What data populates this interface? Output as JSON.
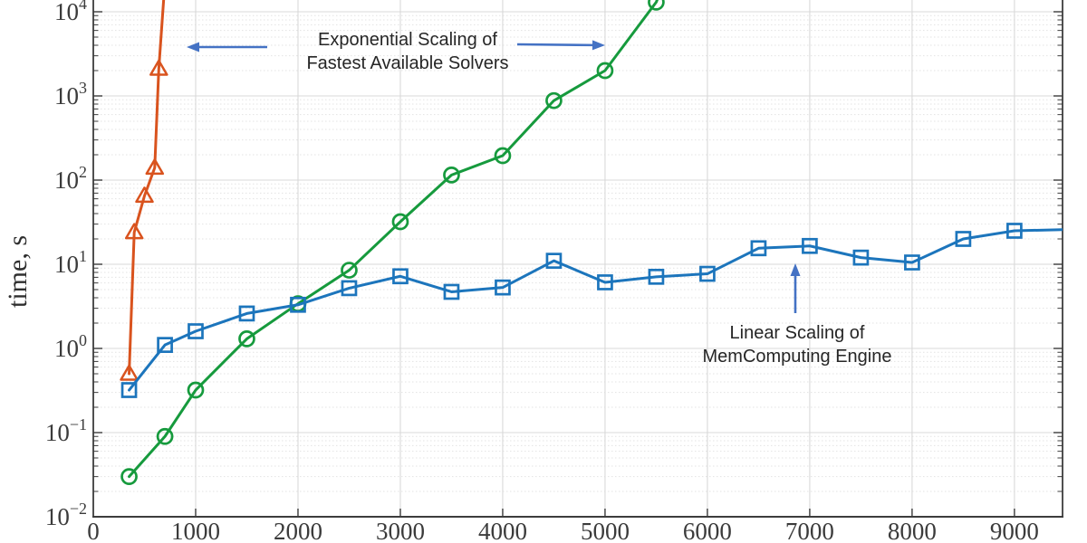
{
  "figure": {
    "background": "#ffffff"
  },
  "chart_data": {
    "type": "line",
    "title": "",
    "xlabel": "",
    "ylabel": "time, s",
    "y_scale": "log",
    "xlim": [
      0,
      9470
    ],
    "ylim": [
      0.01,
      13800
    ],
    "grid": {
      "major": true,
      "minor": true,
      "vertical": true
    },
    "x_ticks": [
      0,
      1000,
      2000,
      3000,
      4000,
      5000,
      6000,
      7000,
      8000,
      9000
    ],
    "y_ticks": [
      {
        "base": "10",
        "sup": "4",
        "exp": 4
      },
      {
        "base": "10",
        "sup": "3",
        "exp": 3
      },
      {
        "base": "10",
        "sup": "2",
        "exp": 2
      },
      {
        "base": "10",
        "sup": "1",
        "exp": 1
      },
      {
        "base": "10",
        "sup": "0",
        "exp": 0
      },
      {
        "base": "10",
        "sup": "−1",
        "exp": -1
      },
      {
        "base": "10",
        "sup": "−2",
        "exp": -2
      }
    ],
    "colors": {
      "grid_major": "#d9d9d9",
      "grid_minor": "#e3e3e3",
      "spine": "#3c3c3c",
      "tick_label": "#3b3b3b",
      "axis_label": "#2f2f2f",
      "annotation_text": "#262626",
      "annotation_arrow": "#4472c4"
    },
    "series": [
      {
        "id": "fastest-solver-triangles",
        "marker": "triangle",
        "color": "#d9531e",
        "points": [
          [
            350,
            0.5
          ],
          [
            400,
            24
          ],
          [
            500,
            65
          ],
          [
            600,
            140
          ],
          [
            640,
            2100
          ],
          [
            705,
            28000
          ]
        ]
      },
      {
        "id": "fastest-solver-circles",
        "marker": "circle",
        "color": "#169a3d",
        "points": [
          [
            350,
            0.03
          ],
          [
            700,
            0.09
          ],
          [
            1000,
            0.32
          ],
          [
            1500,
            1.3
          ],
          [
            2000,
            3.4
          ],
          [
            2500,
            8.5
          ],
          [
            3000,
            32
          ],
          [
            3500,
            115
          ],
          [
            4000,
            195
          ],
          [
            4500,
            880
          ],
          [
            5000,
            2000
          ],
          [
            5500,
            13000
          ],
          [
            5620,
            30000
          ]
        ]
      },
      {
        "id": "memcomputing-engine",
        "marker": "square",
        "color": "#1c75bc",
        "points": [
          [
            350,
            0.32
          ],
          [
            700,
            1.1
          ],
          [
            1000,
            1.6
          ],
          [
            1500,
            2.6
          ],
          [
            2000,
            3.3
          ],
          [
            2500,
            5.2
          ],
          [
            3000,
            7.2
          ],
          [
            3500,
            4.7
          ],
          [
            4000,
            5.3
          ],
          [
            4500,
            11
          ],
          [
            5000,
            6.1
          ],
          [
            5500,
            7.1
          ],
          [
            6000,
            7.7
          ],
          [
            6500,
            15.5
          ],
          [
            7000,
            16.5
          ],
          [
            7500,
            12
          ],
          [
            8000,
            10.5
          ],
          [
            8500,
            20
          ],
          [
            9000,
            25
          ],
          [
            9600,
            26
          ]
        ]
      }
    ],
    "annotations": [
      {
        "id": "exponential",
        "lines": [
          "Exponential Scaling of",
          "Fastest Available Solvers"
        ],
        "arrows": [
          {
            "from": [
              295,
              52
            ],
            "to": [
              206,
              52
            ]
          },
          {
            "from": [
              571,
              49
            ],
            "to": [
              668,
              50
            ]
          }
        ]
      },
      {
        "id": "linear",
        "lines": [
          "Linear Scaling of",
          "MemComputing Engine"
        ],
        "arrows": [
          {
            "from": [
              878,
              346
            ],
            "to": [
              878,
              291
            ]
          }
        ]
      }
    ]
  }
}
